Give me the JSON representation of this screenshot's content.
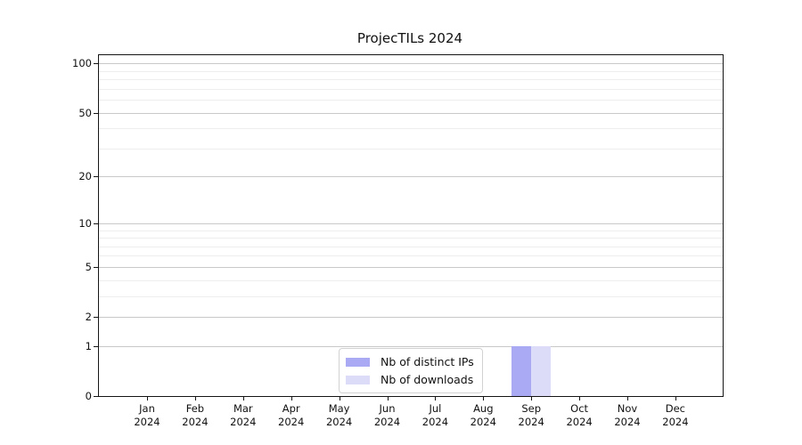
{
  "chart_data": {
    "type": "bar",
    "title": "ProjecTILs 2024",
    "categories": [
      "Jan 2024",
      "Feb 2024",
      "Mar 2024",
      "Apr 2024",
      "May 2024",
      "Jun 2024",
      "Jul 2024",
      "Aug 2024",
      "Sep 2024",
      "Oct 2024",
      "Nov 2024",
      "Dec 2024"
    ],
    "series": [
      {
        "name": "Nb of distinct IPs",
        "color": "#a9a9f4",
        "values": [
          0,
          0,
          0,
          0,
          0,
          0,
          0,
          0,
          1,
          0,
          0,
          0
        ]
      },
      {
        "name": "Nb of downloads",
        "color": "#dcdcf9",
        "values": [
          0,
          0,
          0,
          0,
          0,
          0,
          0,
          0,
          1,
          0,
          0,
          0
        ]
      }
    ],
    "y_axis": {
      "scale": "log1p",
      "major_ticks": [
        100,
        50,
        20,
        10,
        5,
        2,
        1,
        0
      ],
      "major_labels": [
        "100",
        "50",
        "20",
        "10",
        "5",
        "2",
        "1",
        "0"
      ],
      "minor_gridlines": [
        90,
        80,
        70,
        60,
        40,
        30,
        9,
        8,
        7,
        6,
        4,
        3
      ],
      "range": [
        0,
        112
      ]
    },
    "grid": true,
    "legend_position": "lower center",
    "colors": {
      "axis": "#151515",
      "major_grid": "#c9c9c9",
      "minor_grid": "#eeeeee",
      "text": "#111111",
      "legend_border": "#d2d2d2",
      "background": "#ffffff"
    }
  }
}
